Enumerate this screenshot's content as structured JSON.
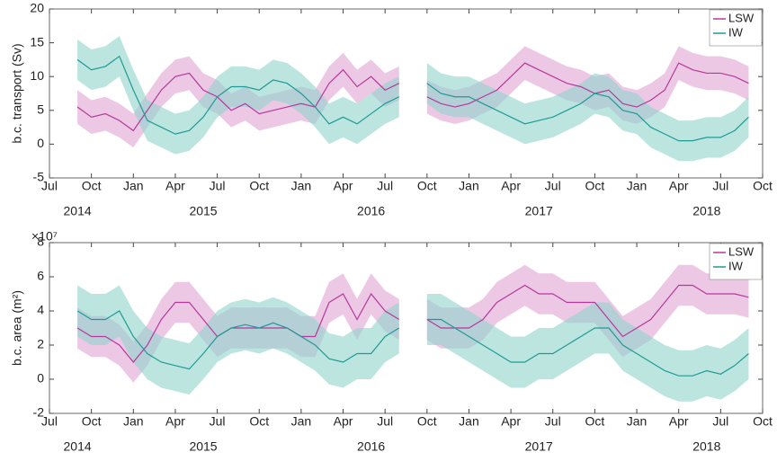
{
  "chart_data": [
    {
      "type": "line",
      "ylabel": "b.c. transport (Sv)",
      "x": [
        "2014-09",
        "2014-10",
        "2014-11",
        "2014-12",
        "2015-01",
        "2015-02",
        "2015-03",
        "2015-04",
        "2015-05",
        "2015-06",
        "2015-07",
        "2015-08",
        "2015-09",
        "2015-10",
        "2015-11",
        "2015-12",
        "2016-01",
        "2016-02",
        "2016-03",
        "2016-04",
        "2016-05",
        "2016-06",
        "2016-07",
        "2016-08",
        "2016-09",
        "2016-10",
        "2016-11",
        "2016-12",
        "2017-01",
        "2017-02",
        "2017-03",
        "2017-04",
        "2017-05",
        "2017-06",
        "2017-07",
        "2017-08",
        "2017-09",
        "2017-10",
        "2017-11",
        "2017-12",
        "2018-01",
        "2018-02",
        "2018-03",
        "2018-04",
        "2018-05",
        "2018-06",
        "2018-07",
        "2018-08",
        "2018-09"
      ],
      "xlim": [
        "2014-07",
        "2018-10"
      ],
      "xticks": [
        {
          "value": "2014-07",
          "label": "Jul"
        },
        {
          "value": "2014-10",
          "label": "Oct"
        },
        {
          "value": "2015-01",
          "label": "Jan"
        },
        {
          "value": "2015-04",
          "label": "Apr"
        },
        {
          "value": "2015-07",
          "label": "Jul"
        },
        {
          "value": "2015-10",
          "label": "Oct"
        },
        {
          "value": "2016-01",
          "label": "Jan"
        },
        {
          "value": "2016-04",
          "label": "Apr"
        },
        {
          "value": "2016-07",
          "label": "Jul"
        },
        {
          "value": "2016-10",
          "label": "Oct"
        },
        {
          "value": "2017-01",
          "label": "Jan"
        },
        {
          "value": "2017-04",
          "label": "Apr"
        },
        {
          "value": "2017-07",
          "label": "Jul"
        },
        {
          "value": "2017-10",
          "label": "Oct"
        },
        {
          "value": "2018-01",
          "label": "Jan"
        },
        {
          "value": "2018-04",
          "label": "Apr"
        },
        {
          "value": "2018-07",
          "label": "Jul"
        },
        {
          "value": "2018-10",
          "label": "Oct"
        }
      ],
      "year_labels": [
        {
          "value": "2014-09",
          "label": "2014"
        },
        {
          "value": "2015-06",
          "label": "2015"
        },
        {
          "value": "2016-06",
          "label": "2016"
        },
        {
          "value": "2017-06",
          "label": "2017"
        },
        {
          "value": "2018-06",
          "label": "2018"
        }
      ],
      "ylim": [
        -5,
        20
      ],
      "yticks": [
        -5,
        0,
        5,
        10,
        15,
        20
      ],
      "grid": false,
      "legend": "upper right",
      "series": [
        {
          "name": "LSW",
          "color": "#b5399c",
          "band_color": "#e0a3d3",
          "band": 2.5,
          "values": [
            5.5,
            4,
            4.5,
            3.5,
            2,
            5,
            8,
            10,
            10.5,
            8,
            7,
            5,
            6,
            4.5,
            5,
            5.5,
            6,
            5.5,
            9,
            11,
            8.5,
            10,
            8,
            9,
            null,
            7,
            6,
            5.5,
            6,
            7,
            8,
            10,
            12,
            11,
            10,
            9,
            8.5,
            7.5,
            8,
            6,
            5.5,
            6.5,
            8,
            12,
            11,
            10.5,
            10.5,
            10,
            9
          ]
        },
        {
          "name": "IW",
          "color": "#1f9a96",
          "band_color": "#8fd4cc",
          "band": 3,
          "values": [
            12.5,
            11,
            11.5,
            13,
            8,
            3.5,
            2.5,
            1.5,
            2,
            4,
            7,
            8.5,
            8.5,
            8,
            9.5,
            9,
            7.5,
            5.5,
            3,
            4,
            3,
            4.5,
            6,
            7,
            null,
            9,
            7.5,
            7,
            7,
            6,
            5,
            4,
            3,
            3.5,
            4,
            5,
            6,
            7.5,
            7,
            5,
            4.5,
            2.5,
            1.5,
            0.5,
            0.5,
            1,
            1,
            2,
            4
          ]
        }
      ]
    },
    {
      "type": "line",
      "ylabel": "b.c. area (m²)",
      "y_multiplier": "×10⁷",
      "x": [
        "2014-09",
        "2014-10",
        "2014-11",
        "2014-12",
        "2015-01",
        "2015-02",
        "2015-03",
        "2015-04",
        "2015-05",
        "2015-06",
        "2015-07",
        "2015-08",
        "2015-09",
        "2015-10",
        "2015-11",
        "2015-12",
        "2016-01",
        "2016-02",
        "2016-03",
        "2016-04",
        "2016-05",
        "2016-06",
        "2016-07",
        "2016-08",
        "2016-09",
        "2016-10",
        "2016-11",
        "2016-12",
        "2017-01",
        "2017-02",
        "2017-03",
        "2017-04",
        "2017-05",
        "2017-06",
        "2017-07",
        "2017-08",
        "2017-09",
        "2017-10",
        "2017-11",
        "2017-12",
        "2018-01",
        "2018-02",
        "2018-03",
        "2018-04",
        "2018-05",
        "2018-06",
        "2018-07",
        "2018-08",
        "2018-09"
      ],
      "xlim": [
        "2014-07",
        "2018-10"
      ],
      "xticks": [
        {
          "value": "2014-07",
          "label": "Jul"
        },
        {
          "value": "2014-10",
          "label": "Oct"
        },
        {
          "value": "2015-01",
          "label": "Jan"
        },
        {
          "value": "2015-04",
          "label": "Apr"
        },
        {
          "value": "2015-07",
          "label": "Jul"
        },
        {
          "value": "2015-10",
          "label": "Oct"
        },
        {
          "value": "2016-01",
          "label": "Jan"
        },
        {
          "value": "2016-04",
          "label": "Apr"
        },
        {
          "value": "2016-07",
          "label": "Jul"
        },
        {
          "value": "2016-10",
          "label": "Oct"
        },
        {
          "value": "2017-01",
          "label": "Jan"
        },
        {
          "value": "2017-04",
          "label": "Apr"
        },
        {
          "value": "2017-07",
          "label": "Jul"
        },
        {
          "value": "2017-10",
          "label": "Oct"
        },
        {
          "value": "2018-01",
          "label": "Jan"
        },
        {
          "value": "2018-04",
          "label": "Apr"
        },
        {
          "value": "2018-07",
          "label": "Jul"
        },
        {
          "value": "2018-10",
          "label": "Oct"
        }
      ],
      "year_labels": [
        {
          "value": "2014-09",
          "label": "2014"
        },
        {
          "value": "2015-06",
          "label": "2015"
        },
        {
          "value": "2016-06",
          "label": "2016"
        },
        {
          "value": "2017-06",
          "label": "2017"
        },
        {
          "value": "2018-06",
          "label": "2018"
        }
      ],
      "ylim": [
        -2,
        8
      ],
      "yticks": [
        -2,
        0,
        2,
        4,
        6,
        8
      ],
      "grid": false,
      "legend": "upper right",
      "series": [
        {
          "name": "LSW",
          "color": "#b5399c",
          "band_color": "#e0a3d3",
          "band": 1.2,
          "values": [
            3,
            2.5,
            2.5,
            2,
            1,
            2,
            3.5,
            4.5,
            4.5,
            3.5,
            2.5,
            3,
            3,
            3,
            3,
            3,
            2.5,
            2.5,
            4.5,
            5,
            3.5,
            5,
            4,
            3.5,
            null,
            3.5,
            3,
            3,
            3,
            3.5,
            4.5,
            5,
            5.5,
            5,
            5,
            4.5,
            4.5,
            4.5,
            3.5,
            2.5,
            3,
            3.5,
            4.5,
            5.5,
            5.5,
            5,
            5,
            5,
            4.8
          ]
        },
        {
          "name": "IW",
          "color": "#1f9a96",
          "band_color": "#8fd4cc",
          "band": 1.5,
          "values": [
            4,
            3.5,
            3.5,
            4,
            2.5,
            1.5,
            1,
            0.8,
            0.6,
            1.5,
            2.5,
            3,
            3.2,
            3,
            3.3,
            3,
            2.5,
            2,
            1.2,
            1,
            1.5,
            1.5,
            2.5,
            3,
            null,
            3.5,
            3.5,
            3,
            2.5,
            2,
            1.5,
            1,
            1,
            1.5,
            1.5,
            2,
            2.5,
            3,
            3,
            2,
            1.5,
            1,
            0.5,
            0.2,
            0.2,
            0.5,
            0.3,
            0.8,
            1.5
          ]
        }
      ]
    }
  ]
}
